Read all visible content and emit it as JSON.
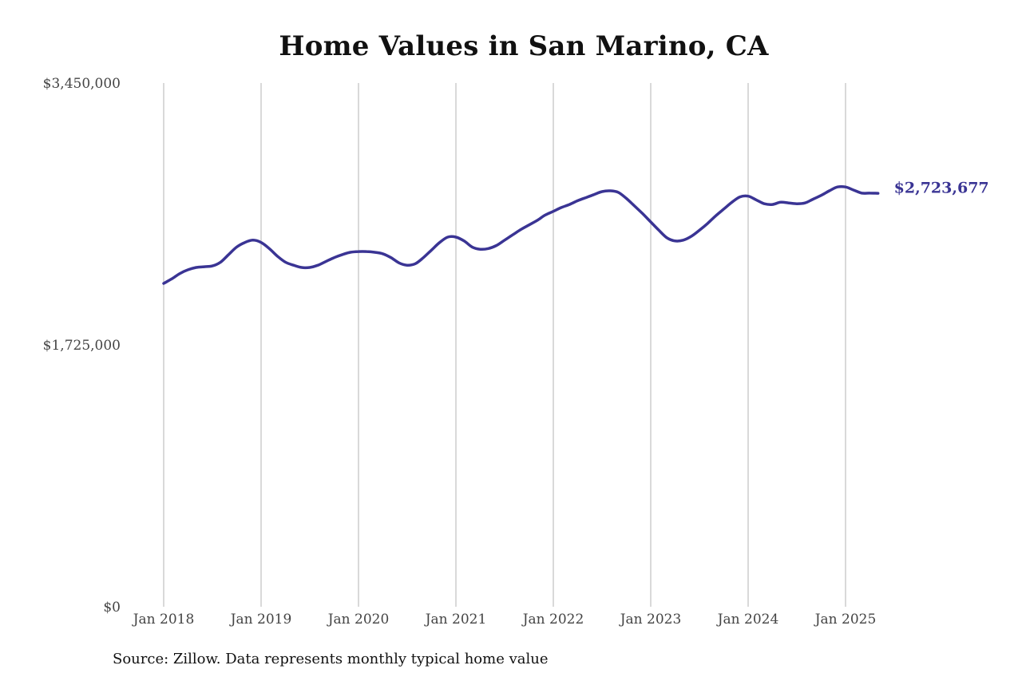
{
  "chart_data": {
    "type": "line",
    "title": "Home Values in San Marino, CA",
    "source": "Source: Zillow. Data represents monthly typical home value",
    "xlabel": "",
    "ylabel": "",
    "ylim": [
      0,
      3450000
    ],
    "y_ticks": [
      {
        "value": 0,
        "label": "$0"
      },
      {
        "value": 1725000,
        "label": "$1,725,000"
      },
      {
        "value": 3450000,
        "label": "$3,450,000"
      }
    ],
    "x_ticks": [
      {
        "date": "2018-01",
        "label": "Jan 2018"
      },
      {
        "date": "2019-01",
        "label": "Jan 2019"
      },
      {
        "date": "2020-01",
        "label": "Jan 2020"
      },
      {
        "date": "2021-01",
        "label": "Jan 2021"
      },
      {
        "date": "2022-01",
        "label": "Jan 2022"
      },
      {
        "date": "2023-01",
        "label": "Jan 2023"
      },
      {
        "date": "2024-01",
        "label": "Jan 2024"
      },
      {
        "date": "2025-01",
        "label": "Jan 2025"
      }
    ],
    "xlim": [
      "2018-01",
      "2025-05"
    ],
    "grid": {
      "vertical": true,
      "horizontal": false
    },
    "line_color": "#3a3494",
    "end_label": "$2,723,677",
    "series": [
      {
        "points": [
          [
            "2018-01",
            2130000
          ],
          [
            "2018-02",
            2160000
          ],
          [
            "2018-03",
            2195000
          ],
          [
            "2018-04",
            2220000
          ],
          [
            "2018-05",
            2235000
          ],
          [
            "2018-06",
            2240000
          ],
          [
            "2018-07",
            2245000
          ],
          [
            "2018-08",
            2270000
          ],
          [
            "2018-09",
            2320000
          ],
          [
            "2018-10",
            2370000
          ],
          [
            "2018-11",
            2400000
          ],
          [
            "2018-12",
            2415000
          ],
          [
            "2019-01",
            2400000
          ],
          [
            "2019-02",
            2360000
          ],
          [
            "2019-03",
            2310000
          ],
          [
            "2019-04",
            2270000
          ],
          [
            "2019-05",
            2250000
          ],
          [
            "2019-06",
            2235000
          ],
          [
            "2019-07",
            2235000
          ],
          [
            "2019-08",
            2250000
          ],
          [
            "2019-09",
            2275000
          ],
          [
            "2019-10",
            2300000
          ],
          [
            "2019-11",
            2320000
          ],
          [
            "2019-12",
            2335000
          ],
          [
            "2020-01",
            2340000
          ],
          [
            "2020-02",
            2340000
          ],
          [
            "2020-03",
            2335000
          ],
          [
            "2020-04",
            2325000
          ],
          [
            "2020-05",
            2300000
          ],
          [
            "2020-06",
            2265000
          ],
          [
            "2020-07",
            2250000
          ],
          [
            "2020-08",
            2260000
          ],
          [
            "2020-09",
            2300000
          ],
          [
            "2020-10",
            2350000
          ],
          [
            "2020-11",
            2400000
          ],
          [
            "2020-12",
            2435000
          ],
          [
            "2021-01",
            2435000
          ],
          [
            "2021-02",
            2410000
          ],
          [
            "2021-03",
            2370000
          ],
          [
            "2021-04",
            2355000
          ],
          [
            "2021-05",
            2360000
          ],
          [
            "2021-06",
            2380000
          ],
          [
            "2021-07",
            2415000
          ],
          [
            "2021-08",
            2450000
          ],
          [
            "2021-09",
            2485000
          ],
          [
            "2021-10",
            2515000
          ],
          [
            "2021-11",
            2545000
          ],
          [
            "2021-12",
            2580000
          ],
          [
            "2022-01",
            2605000
          ],
          [
            "2022-02",
            2630000
          ],
          [
            "2022-03",
            2650000
          ],
          [
            "2022-04",
            2675000
          ],
          [
            "2022-05",
            2695000
          ],
          [
            "2022-06",
            2715000
          ],
          [
            "2022-07",
            2735000
          ],
          [
            "2022-08",
            2740000
          ],
          [
            "2022-09",
            2730000
          ],
          [
            "2022-10",
            2690000
          ],
          [
            "2022-11",
            2640000
          ],
          [
            "2022-12",
            2590000
          ],
          [
            "2023-01",
            2535000
          ],
          [
            "2023-02",
            2480000
          ],
          [
            "2023-03",
            2430000
          ],
          [
            "2023-04",
            2410000
          ],
          [
            "2023-05",
            2415000
          ],
          [
            "2023-06",
            2440000
          ],
          [
            "2023-07",
            2480000
          ],
          [
            "2023-08",
            2525000
          ],
          [
            "2023-09",
            2575000
          ],
          [
            "2023-10",
            2620000
          ],
          [
            "2023-11",
            2665000
          ],
          [
            "2023-12",
            2700000
          ],
          [
            "2024-01",
            2705000
          ],
          [
            "2024-02",
            2680000
          ],
          [
            "2024-03",
            2655000
          ],
          [
            "2024-04",
            2650000
          ],
          [
            "2024-05",
            2665000
          ],
          [
            "2024-06",
            2660000
          ],
          [
            "2024-07",
            2655000
          ],
          [
            "2024-08",
            2660000
          ],
          [
            "2024-09",
            2685000
          ],
          [
            "2024-10",
            2710000
          ],
          [
            "2024-11",
            2740000
          ],
          [
            "2024-12",
            2765000
          ],
          [
            "2025-01",
            2765000
          ],
          [
            "2025-02",
            2745000
          ],
          [
            "2025-03",
            2725000
          ],
          [
            "2025-04",
            2725000
          ],
          [
            "2025-05",
            2723677
          ]
        ]
      }
    ]
  }
}
